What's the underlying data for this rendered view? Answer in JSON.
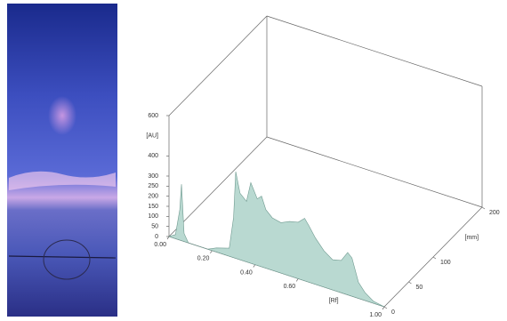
{
  "chart_data": {
    "type": "area3d",
    "x": [
      0,
      0.03,
      0.05,
      0.058,
      0.07,
      0.09,
      0.18,
      0.22,
      0.28,
      0.3,
      0.31,
      0.33,
      0.36,
      0.38,
      0.41,
      0.43,
      0.45,
      0.48,
      0.52,
      0.56,
      0.6,
      0.63,
      0.65,
      0.68,
      0.72,
      0.76,
      0.8,
      0.83,
      0.85,
      0.88,
      0.91,
      0.95,
      1.0
    ],
    "values": [
      0,
      20,
      150,
      280,
      40,
      0,
      0,
      20,
      40,
      200,
      430,
      330,
      300,
      400,
      330,
      350,
      290,
      260,
      250,
      270,
      280,
      310,
      280,
      230,
      180,
      150,
      160,
      210,
      190,
      80,
      40,
      10,
      0
    ],
    "color": "#b9d9d1",
    "xlim": [
      0,
      1
    ],
    "xticks": [
      {
        "value": 0,
        "label": "0.00"
      },
      {
        "value": 0.2,
        "label": "0.20"
      },
      {
        "value": 0.4,
        "label": "0.40"
      },
      {
        "value": 0.6,
        "label": "0.60"
      },
      {
        "value": 1,
        "label": "1.00"
      }
    ],
    "xlabel": "[Rf]",
    "ylim": [
      0,
      600
    ],
    "yticks": [
      0,
      50,
      100,
      150,
      200,
      250,
      300,
      400,
      600
    ],
    "ylabel": "[AU]",
    "zlim": [
      0,
      200
    ],
    "zticks": [
      0,
      50,
      100,
      200
    ],
    "zlabel": "[mm]"
  }
}
